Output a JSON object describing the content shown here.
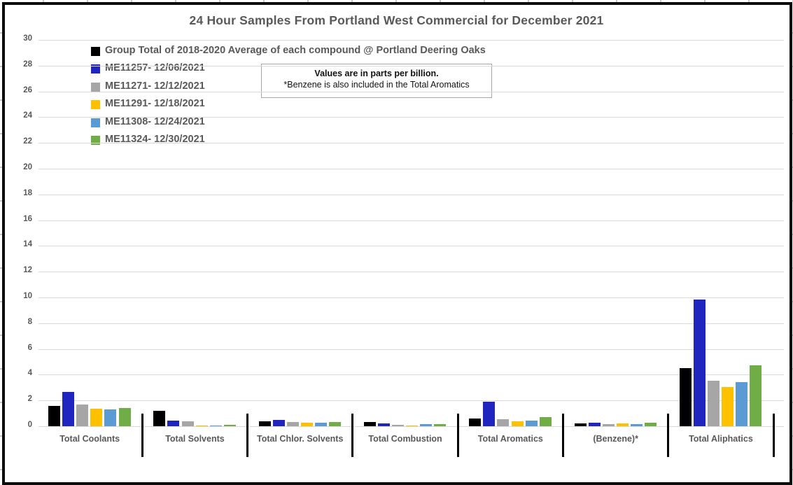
{
  "title": "24 Hour Samples From Portland West Commercial for December 2021",
  "note_box": {
    "line1": "Values are in parts per billion.",
    "line2": "*Benzene is also included in the Total Aromatics"
  },
  "chart_data": {
    "type": "bar",
    "title": "24 Hour Samples From Portland West Commercial for December 2021",
    "unit": "parts per billion",
    "categories": [
      "Total Coolants",
      "Total Solvents",
      "Total Chlor. Solvents",
      "Total Combustion",
      "Total Aromatics",
      "(Benzene)*",
      "Total Aliphatics"
    ],
    "series": [
      {
        "name": "Group Total of 2018-2020 Average of each compound @ Portland Deering Oaks",
        "color": "#000000",
        "values": [
          1.55,
          1.2,
          0.4,
          0.3,
          0.6,
          0.22,
          4.5
        ]
      },
      {
        "name": "ME11257- 12/06/2021",
        "color": "#2025C0",
        "values": [
          2.65,
          0.42,
          0.47,
          0.2,
          1.9,
          0.28,
          9.85
        ]
      },
      {
        "name": "ME11271- 12/12/2021",
        "color": "#A6A6A6",
        "values": [
          1.7,
          0.38,
          0.3,
          0.1,
          0.55,
          0.16,
          3.55
        ]
      },
      {
        "name": "ME11291- 12/18/2021",
        "color": "#FFC000",
        "values": [
          1.35,
          0.08,
          0.27,
          0.02,
          0.38,
          0.2,
          3.05
        ]
      },
      {
        "name": "ME11308- 12/24/2021",
        "color": "#5B9BD5",
        "values": [
          1.3,
          0.06,
          0.26,
          0.16,
          0.45,
          0.18,
          3.4
        ]
      },
      {
        "name": "ME11324- 12/30/2021",
        "color": "#70AD47",
        "values": [
          1.4,
          0.12,
          0.32,
          0.15,
          0.7,
          0.29,
          4.75
        ]
      }
    ],
    "ylim": [
      0,
      30
    ],
    "ytick_step": 2,
    "grid": true,
    "legend_position": "top-left"
  },
  "colors": {
    "axis_text": "#595959",
    "gridline": "#D9D9D9",
    "frame_border": "#0C0C0C",
    "note_border": "#A6A6A6"
  }
}
